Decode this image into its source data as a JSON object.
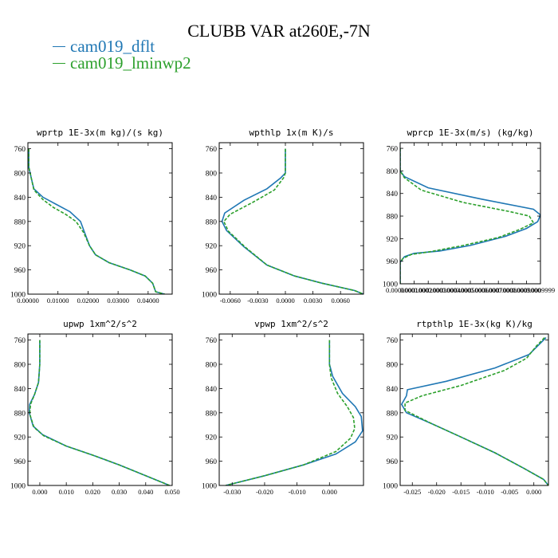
{
  "title": "CLUBB VAR at260E,-7N",
  "legend": [
    {
      "label": "cam019_dflt",
      "color": "#1f77b4"
    },
    {
      "label": "cam019_lminwp2",
      "color": "#2ca02c"
    }
  ],
  "chart_data": [
    {
      "type": "line",
      "title": "wprtp  1E-3x(m kg)/(s kg)",
      "xlim": [
        0,
        0.048
      ],
      "ylim": [
        1000,
        750
      ],
      "xticks": [
        0,
        0.01,
        0.02,
        0.03,
        0.04
      ],
      "xticklabels": [
        "0.00000",
        "0.01000",
        "0.02000",
        "0.03000",
        "0.04000"
      ],
      "yticks": [
        760,
        800,
        840,
        880,
        920,
        960,
        1000
      ],
      "series": [
        {
          "color": "#1f77b4",
          "dashed": false,
          "points": [
            [
              0.0003,
              760
            ],
            [
              0.0003,
              790
            ],
            [
              0.0012,
              810
            ],
            [
              0.002,
              826
            ],
            [
              0.005,
              840
            ],
            [
              0.0095,
              852
            ],
            [
              0.014,
              864
            ],
            [
              0.0175,
              880
            ],
            [
              0.019,
              900
            ],
            [
              0.0205,
              920
            ],
            [
              0.0225,
              935
            ],
            [
              0.027,
              948
            ],
            [
              0.034,
              960
            ],
            [
              0.039,
              970
            ],
            [
              0.0415,
              982
            ],
            [
              0.0425,
              996
            ],
            [
              0.0455,
              1000
            ]
          ]
        },
        {
          "color": "#2ca02c",
          "dashed": true,
          "points": [
            [
              0.0003,
              760
            ],
            [
              0.0003,
              790
            ],
            [
              0.0012,
              810
            ],
            [
              0.002,
              828
            ],
            [
              0.005,
              844
            ],
            [
              0.0085,
              857
            ],
            [
              0.0125,
              868
            ],
            [
              0.016,
              880
            ],
            [
              0.0185,
              898
            ],
            [
              0.0205,
              920
            ],
            [
              0.0225,
              935
            ],
            [
              0.027,
              948
            ],
            [
              0.034,
              960
            ],
            [
              0.039,
              970
            ],
            [
              0.0415,
              982
            ],
            [
              0.0425,
              996
            ],
            [
              0.0455,
              1000
            ]
          ]
        }
      ]
    },
    {
      "type": "line",
      "title": "wpthlp  1x(m K)/s",
      "xlim": [
        -0.0072,
        0.0085
      ],
      "ylim": [
        1000,
        750
      ],
      "xticks": [
        -0.006,
        -0.003,
        0,
        0.003,
        0.006
      ],
      "xticklabels": [
        "-0.0060",
        "-0.0030",
        "0.0000",
        "0.0030",
        "0.0060"
      ],
      "yticks": [
        760,
        800,
        840,
        880,
        920,
        960,
        1000
      ],
      "series": [
        {
          "color": "#1f77b4",
          "dashed": false,
          "points": [
            [
              0,
              760
            ],
            [
              0,
              800
            ],
            [
              -0.0005,
              808
            ],
            [
              -0.002,
              826
            ],
            [
              -0.0045,
              845
            ],
            [
              -0.0066,
              866
            ],
            [
              -0.0069,
              880
            ],
            [
              -0.0064,
              895
            ],
            [
              -0.0045,
              922
            ],
            [
              -0.002,
              952
            ],
            [
              0.001,
              970
            ],
            [
              0.004,
              982
            ],
            [
              0.0075,
              994
            ],
            [
              0.0085,
              1000
            ]
          ]
        },
        {
          "color": "#2ca02c",
          "dashed": true,
          "points": [
            [
              0,
              760
            ],
            [
              0,
              800
            ],
            [
              -0.0002,
              808
            ],
            [
              -0.0012,
              828
            ],
            [
              -0.0035,
              848
            ],
            [
              -0.006,
              868
            ],
            [
              -0.0067,
              880
            ],
            [
              -0.0062,
              896
            ],
            [
              -0.0044,
              922
            ],
            [
              -0.002,
              952
            ],
            [
              0.001,
              970
            ],
            [
              0.004,
              982
            ],
            [
              0.0075,
              994
            ],
            [
              0.0085,
              1000
            ]
          ]
        }
      ]
    },
    {
      "type": "line",
      "title": "wprcp  1E-3x(m/s) (kg/kg)",
      "xlim": [
        0,
        0.001
      ],
      "ylim": [
        1000,
        750
      ],
      "xticks": [
        0,
        0.0001,
        0.0002,
        0.0003,
        0.0004,
        0.0005,
        0.0006,
        0.0007,
        0.0008,
        0.0009,
        0.001
      ],
      "xticklabels": [
        "0.0000000",
        "0.0001000",
        "0.0002000",
        "0.0003000",
        "0.0004000",
        "0.0005000",
        "0.0006000",
        "0.0007000",
        "0.0008000",
        "0.0009000",
        "0.0009999"
      ],
      "yticks": [
        760,
        800,
        840,
        880,
        920,
        960,
        1000
      ],
      "series": [
        {
          "color": "#1f77b4",
          "dashed": false,
          "points": [
            [
              0,
              760
            ],
            [
              0,
              800
            ],
            [
              3e-05,
              810
            ],
            [
              0.0002,
              830
            ],
            [
              0.00058,
              850
            ],
            [
              0.00095,
              868
            ],
            [
              0.001,
              878
            ],
            [
              0.00098,
              890
            ],
            [
              0.0009,
              902
            ],
            [
              0.00075,
              916
            ],
            [
              0.0005,
              932
            ],
            [
              0.00028,
              942
            ],
            [
              0.0001,
              946
            ],
            [
              3e-05,
              952
            ],
            [
              0,
              962
            ],
            [
              0,
              1000
            ]
          ]
        },
        {
          "color": "#2ca02c",
          "dashed": true,
          "points": [
            [
              0,
              760
            ],
            [
              0,
              800
            ],
            [
              3e-05,
              812
            ],
            [
              0.00015,
              834
            ],
            [
              0.00045,
              856
            ],
            [
              0.00078,
              872
            ],
            [
              0.00092,
              880
            ],
            [
              0.00095,
              892
            ],
            [
              0.00085,
              904
            ],
            [
              0.0007,
              918
            ],
            [
              0.00045,
              932
            ],
            [
              0.00022,
              943
            ],
            [
              8e-05,
              948
            ],
            [
              2e-05,
              955
            ],
            [
              0,
              962
            ],
            [
              0,
              1000
            ]
          ]
        }
      ]
    },
    {
      "type": "line",
      "title": "upwp  1xm^2/s^2",
      "xlim": [
        -0.0045,
        0.05
      ],
      "ylim": [
        1000,
        750
      ],
      "xticks": [
        0,
        0.01,
        0.02,
        0.03,
        0.04,
        0.05
      ],
      "xticklabels": [
        "0.000",
        "0.010",
        "0.020",
        "0.030",
        "0.040",
        "0.050"
      ],
      "yticks": [
        760,
        800,
        840,
        880,
        920,
        960,
        1000
      ],
      "series": [
        {
          "color": "#1f77b4",
          "dashed": false,
          "points": [
            [
              0,
              760
            ],
            [
              0,
              800
            ],
            [
              -0.0005,
              830
            ],
            [
              -0.002,
              850
            ],
            [
              -0.0038,
              866
            ],
            [
              -0.004,
              880
            ],
            [
              -0.0025,
              902
            ],
            [
              0.001,
              916
            ],
            [
              0.01,
              935
            ],
            [
              0.02,
              950
            ],
            [
              0.03,
              966
            ],
            [
              0.04,
              984
            ],
            [
              0.049,
              1000
            ]
          ]
        },
        {
          "color": "#2ca02c",
          "dashed": true,
          "points": [
            [
              0,
              760
            ],
            [
              0,
              800
            ],
            [
              -0.0005,
              830
            ],
            [
              -0.002,
              850
            ],
            [
              -0.0035,
              866
            ],
            [
              -0.0038,
              882
            ],
            [
              -0.0022,
              904
            ],
            [
              0.0015,
              918
            ],
            [
              0.01,
              935
            ],
            [
              0.02,
              950
            ],
            [
              0.03,
              966
            ],
            [
              0.04,
              984
            ],
            [
              0.049,
              1000
            ]
          ]
        }
      ]
    },
    {
      "type": "line",
      "title": "vpwp  1xm^2/s^2",
      "xlim": [
        -0.034,
        0.0105
      ],
      "ylim": [
        1000,
        750
      ],
      "xticks": [
        -0.03,
        -0.02,
        -0.01,
        0
      ],
      "xticklabels": [
        "-0.030",
        "-0.020",
        "-0.010",
        "0.000"
      ],
      "yticks": [
        760,
        800,
        840,
        880,
        920,
        960,
        1000
      ],
      "series": [
        {
          "color": "#1f77b4",
          "dashed": false,
          "points": [
            [
              0,
              760
            ],
            [
              0,
              800
            ],
            [
              0.001,
              820
            ],
            [
              0.004,
              848
            ],
            [
              0.008,
              870
            ],
            [
              0.0098,
              886
            ],
            [
              0.0102,
              910
            ],
            [
              0.008,
              928
            ],
            [
              0.002,
              948
            ],
            [
              -0.008,
              966
            ],
            [
              -0.02,
              984
            ],
            [
              -0.032,
              1000
            ]
          ]
        },
        {
          "color": "#2ca02c",
          "dashed": true,
          "points": [
            [
              0,
              760
            ],
            [
              0,
              800
            ],
            [
              0.0005,
              822
            ],
            [
              0.0025,
              848
            ],
            [
              0.0055,
              870
            ],
            [
              0.0074,
              888
            ],
            [
              0.0078,
              906
            ],
            [
              0.0065,
              922
            ],
            [
              0.002,
              944
            ],
            [
              -0.008,
              966
            ],
            [
              -0.02,
              984
            ],
            [
              -0.032,
              1000
            ]
          ]
        }
      ]
    },
    {
      "type": "line",
      "title": "rtpthlp  1E-3x(kg K)/kg",
      "xlim": [
        -0.0275,
        0.003
      ],
      "ylim": [
        1000,
        750
      ],
      "xticks": [
        -0.025,
        -0.02,
        -0.015,
        -0.01,
        -0.005,
        0
      ],
      "xticklabels": [
        "-0.025",
        "-0.020",
        "-0.015",
        "-0.010",
        "-0.005",
        "0.000"
      ],
      "yticks": [
        760,
        800,
        840,
        880,
        920,
        960,
        1000
      ],
      "series": [
        {
          "color": "#1f77b4",
          "dashed": false,
          "points": [
            [
              0.0025,
              756
            ],
            [
              0.001,
              768
            ],
            [
              -0.001,
              784
            ],
            [
              -0.008,
              806
            ],
            [
              -0.018,
              828
            ],
            [
              -0.026,
              842
            ],
            [
              -0.0262,
              852
            ],
            [
              -0.0272,
              866
            ],
            [
              -0.0262,
              880
            ],
            [
              -0.021,
              898
            ],
            [
              -0.015,
              920
            ],
            [
              -0.008,
              946
            ],
            [
              -0.002,
              972
            ],
            [
              0.002,
              990
            ],
            [
              0.003,
              1000
            ]
          ]
        },
        {
          "color": "#2ca02c",
          "dashed": true,
          "points": [
            [
              0.0022,
              756
            ],
            [
              0.0005,
              770
            ],
            [
              -0.0015,
              790
            ],
            [
              -0.006,
              810
            ],
            [
              -0.015,
              835
            ],
            [
              -0.023,
              852
            ],
            [
              -0.0265,
              864
            ],
            [
              -0.0265,
              876
            ],
            [
              -0.021,
              898
            ],
            [
              -0.015,
              920
            ],
            [
              -0.008,
              946
            ],
            [
              -0.002,
              972
            ],
            [
              0.002,
              990
            ],
            [
              0.003,
              1000
            ]
          ]
        }
      ]
    }
  ]
}
